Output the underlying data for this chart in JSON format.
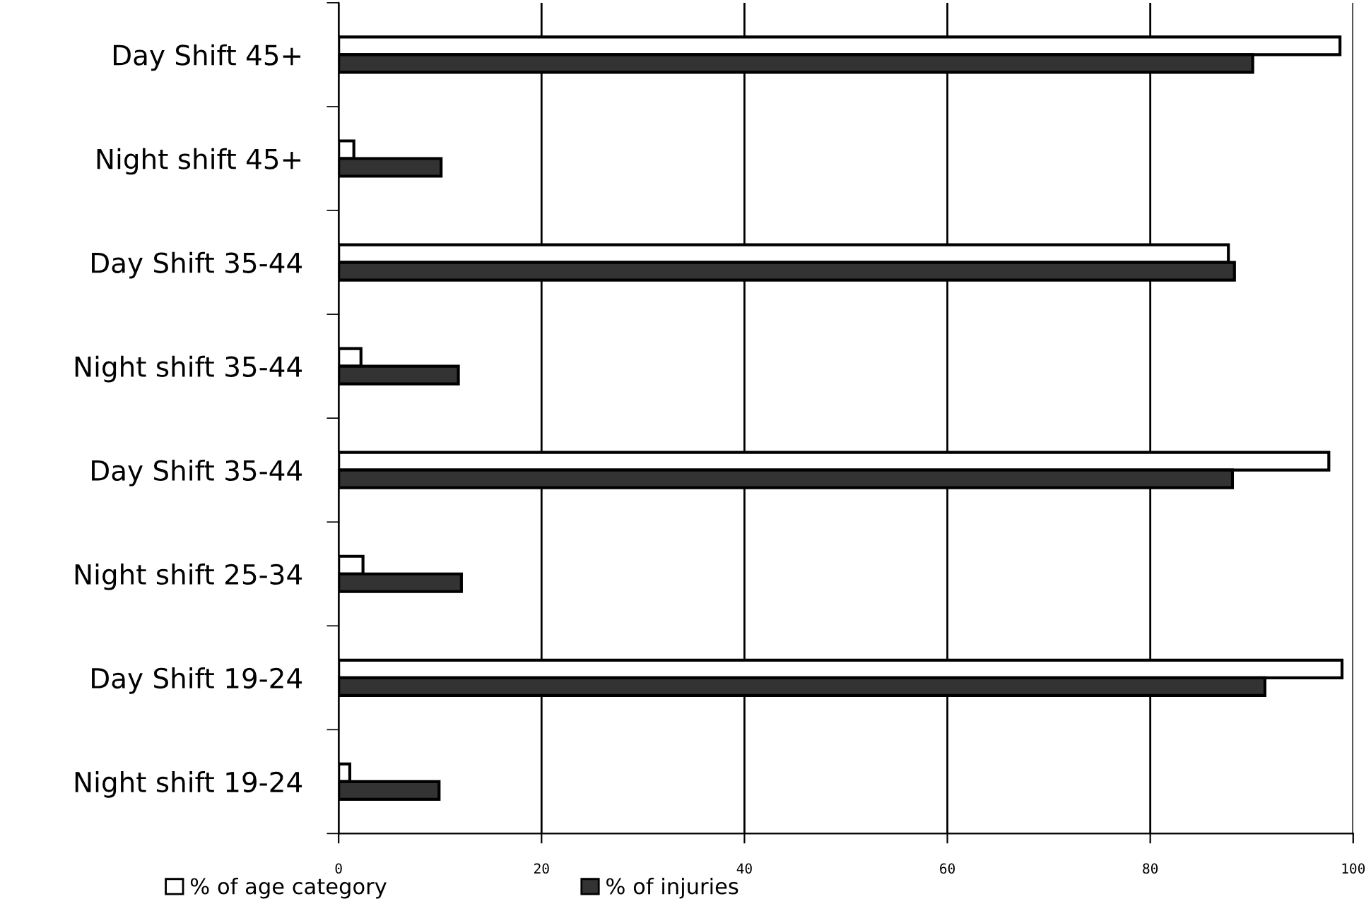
{
  "chart_data": {
    "type": "bar",
    "orientation": "horizontal",
    "categories": [
      "Day Shift 45+",
      "Night shift 45+",
      "Day Shift 35-44",
      "Night shift 35-44",
      "Day Shift 35-44",
      "Night shift 25-34",
      "Day Shift 19-24",
      "Night shift 19-24"
    ],
    "series": [
      {
        "name": "% of age category",
        "color": "#ffffff",
        "values": [
          98.7,
          1.5,
          87.7,
          2.2,
          97.6,
          2.4,
          98.9,
          1.1
        ]
      },
      {
        "name": "% of injuries",
        "color": "#333333",
        "values": [
          90.1,
          10.1,
          88.3,
          11.8,
          88.1,
          12.1,
          91.3,
          9.9
        ]
      }
    ],
    "xlim": [
      0,
      100
    ],
    "xticks": [
      0,
      20,
      40,
      60,
      80,
      100
    ],
    "grid": "x",
    "legend": "bottom"
  }
}
